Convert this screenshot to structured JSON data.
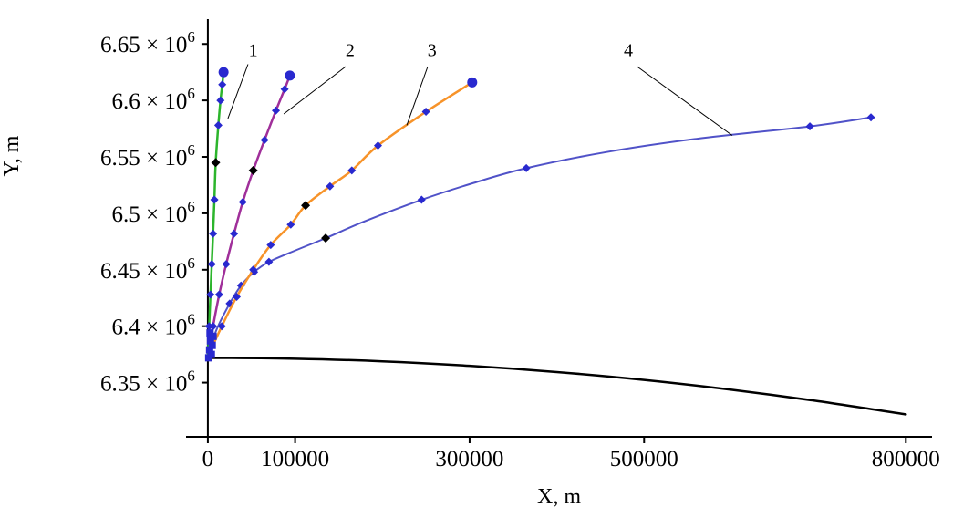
{
  "chart_data": {
    "type": "line",
    "xlabel": "X, m",
    "ylabel": "Y, m",
    "xlim": [
      -25000,
      830000
    ],
    "ylim": [
      6302000,
      6672000
    ],
    "grid": false,
    "legend": "none",
    "axis_color": "#000000",
    "marker_color": "#2929cf",
    "x_ticks": [
      {
        "v": 0,
        "label": "0"
      },
      {
        "v": 100000,
        "label": "100000"
      },
      {
        "v": 300000,
        "label": "300000"
      },
      {
        "v": 500000,
        "label": "500000"
      },
      {
        "v": 800000,
        "label": "800000"
      }
    ],
    "y_ticks": [
      {
        "v": 6350000,
        "label": "6.35 × 10^6"
      },
      {
        "v": 6400000,
        "label": "6.4 × 10^6"
      },
      {
        "v": 6450000,
        "label": "6.45 × 10^6"
      },
      {
        "v": 6500000,
        "label": "6.5 × 10^6"
      },
      {
        "v": 6550000,
        "label": "6.55 × 10^6"
      },
      {
        "v": 6600000,
        "label": "6.6 × 10^6"
      },
      {
        "v": 6650000,
        "label": "6.65 × 10^6"
      }
    ],
    "series": [
      {
        "id": "surface",
        "color": "#000000",
        "width": 2.5,
        "points": [
          [
            0,
            6372000
          ],
          [
            100000,
            6371200
          ],
          [
            200000,
            6368900
          ],
          [
            300000,
            6364900
          ],
          [
            400000,
            6359400
          ],
          [
            500000,
            6352400
          ],
          [
            600000,
            6343700
          ],
          [
            700000,
            6333500
          ],
          [
            800000,
            6321800
          ]
        ]
      },
      {
        "id": "4",
        "color": "#5052c8",
        "width": 2,
        "end_dot": false,
        "points": [
          [
            0,
            6373000
          ],
          [
            10000,
            6397000
          ],
          [
            25000,
            6420000
          ],
          [
            38000,
            6436000
          ],
          [
            53000,
            6448000
          ],
          [
            70000,
            6457000
          ],
          [
            100000,
            6467000
          ],
          [
            135000,
            6478000
          ],
          [
            180000,
            6493000
          ],
          [
            245000,
            6512000
          ],
          [
            305000,
            6527000
          ],
          [
            365000,
            6540000
          ],
          [
            455000,
            6554000
          ],
          [
            560000,
            6566000
          ],
          [
            690000,
            6577000
          ],
          [
            760000,
            6585000
          ]
        ],
        "marker_points": [
          [
            25000,
            6420000
          ],
          [
            38000,
            6436000
          ],
          [
            53000,
            6448000
          ],
          [
            70000,
            6457000
          ],
          [
            245000,
            6512000
          ],
          [
            365000,
            6540000
          ],
          [
            690000,
            6577000
          ],
          [
            760000,
            6585000
          ]
        ],
        "black_points": [
          [
            135000,
            6478000
          ]
        ]
      },
      {
        "id": "3",
        "color": "#f79329",
        "width": 2.5,
        "end_dot": true,
        "points": [
          [
            0,
            6373000
          ],
          [
            16000,
            6400000
          ],
          [
            33000,
            6426000
          ],
          [
            52000,
            6450000
          ],
          [
            72000,
            6472000
          ],
          [
            95000,
            6490000
          ],
          [
            112000,
            6507000
          ],
          [
            140000,
            6524000
          ],
          [
            165000,
            6538000
          ],
          [
            195000,
            6560000
          ],
          [
            250000,
            6590000
          ],
          [
            303000,
            6616000
          ]
        ],
        "marker_points": [
          [
            16000,
            6400000
          ],
          [
            33000,
            6426000
          ],
          [
            52000,
            6450000
          ],
          [
            72000,
            6472000
          ],
          [
            95000,
            6490000
          ],
          [
            140000,
            6524000
          ],
          [
            165000,
            6538000
          ],
          [
            195000,
            6560000
          ],
          [
            250000,
            6590000
          ]
        ],
        "black_points": [
          [
            112000,
            6507000
          ]
        ]
      },
      {
        "id": "2",
        "color": "#a02f9a",
        "width": 2.5,
        "end_dot": true,
        "points": [
          [
            0,
            6373000
          ],
          [
            6000,
            6400000
          ],
          [
            13000,
            6428000
          ],
          [
            21000,
            6455000
          ],
          [
            30000,
            6482000
          ],
          [
            40000,
            6510000
          ],
          [
            52000,
            6538000
          ],
          [
            65000,
            6565000
          ],
          [
            78000,
            6591000
          ],
          [
            88000,
            6610000
          ],
          [
            94000,
            6622000
          ]
        ],
        "marker_points": [
          [
            6000,
            6400000
          ],
          [
            13000,
            6428000
          ],
          [
            21000,
            6455000
          ],
          [
            30000,
            6482000
          ],
          [
            40000,
            6510000
          ],
          [
            65000,
            6565000
          ],
          [
            78000,
            6591000
          ],
          [
            88000,
            6610000
          ]
        ],
        "black_points": [
          [
            52000,
            6538000
          ]
        ]
      },
      {
        "id": "1",
        "color": "#2cb52c",
        "width": 2.5,
        "end_dot": true,
        "points": [
          [
            0,
            6373000
          ],
          [
            1500,
            6400000
          ],
          [
            3000,
            6428000
          ],
          [
            4500,
            6455000
          ],
          [
            6000,
            6482000
          ],
          [
            7500,
            6512000
          ],
          [
            9000,
            6545000
          ],
          [
            12000,
            6578000
          ],
          [
            14500,
            6600000
          ],
          [
            16500,
            6614000
          ],
          [
            18000,
            6625000
          ]
        ],
        "marker_points": [
          [
            1500,
            6400000
          ],
          [
            3000,
            6428000
          ],
          [
            4500,
            6455000
          ],
          [
            6000,
            6482000
          ],
          [
            7500,
            6512000
          ],
          [
            12000,
            6578000
          ],
          [
            14500,
            6600000
          ],
          [
            16500,
            6614000
          ]
        ],
        "black_points": [
          [
            9000,
            6545000
          ]
        ]
      }
    ],
    "start_markers": [
      [
        1000,
        6372000
      ],
      [
        4000,
        6375000
      ],
      [
        2000,
        6379000
      ],
      [
        5000,
        6383000
      ],
      [
        3000,
        6387000
      ],
      [
        6000,
        6391000
      ],
      [
        2500,
        6394000
      ]
    ],
    "annotations": [
      {
        "label": "1",
        "x": 52000,
        "y": 6645000,
        "line": [
          [
            46000,
            6632000
          ],
          [
            23000,
            6584000
          ]
        ]
      },
      {
        "label": "2",
        "x": 163000,
        "y": 6645000,
        "line": [
          [
            158000,
            6630000
          ],
          [
            87000,
            6588000
          ]
        ]
      },
      {
        "label": "3",
        "x": 257000,
        "y": 6645000,
        "line": [
          [
            252000,
            6630000
          ],
          [
            228000,
            6578000
          ]
        ]
      },
      {
        "label": "4",
        "x": 482000,
        "y": 6645000,
        "line": [
          [
            492000,
            6630000
          ],
          [
            601000,
            6569000
          ]
        ]
      }
    ]
  }
}
